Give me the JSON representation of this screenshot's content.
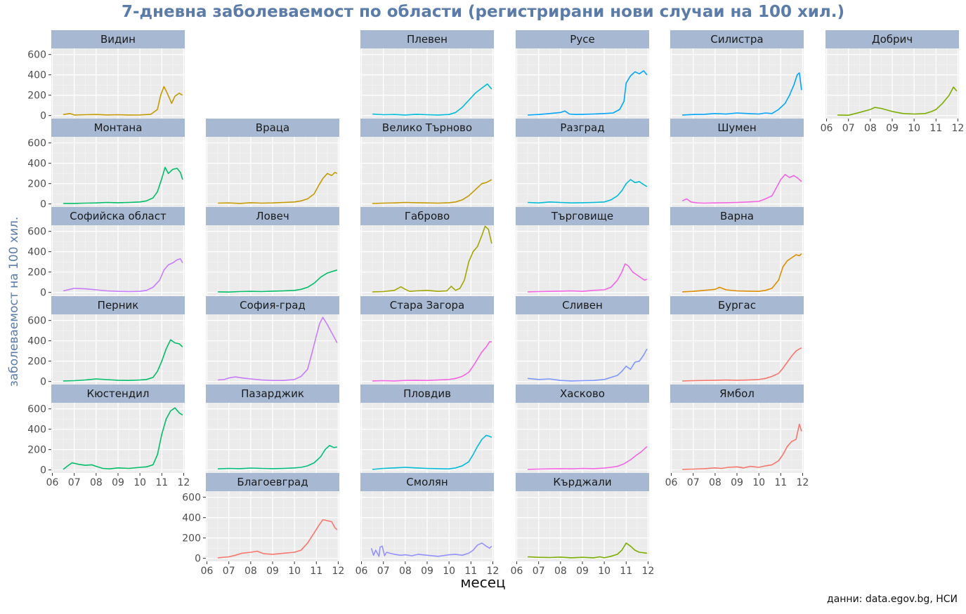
{
  "title": "7-дневна заболеваемост по области (регистрирани нови случаи на 100 хил.)",
  "caption": "данни: data.egov.bg, НСИ",
  "chart_data": {
    "type": "line",
    "xlabel": "месец",
    "ylabel": "заболеваемост на 100 хил.",
    "x_ticks": [
      "06",
      "07",
      "08",
      "09",
      "10",
      "11",
      "12"
    ],
    "y_ticks": [
      0,
      200,
      400,
      600
    ],
    "xlim": [
      5.95,
      12.05
    ],
    "ylim": [
      -30,
      660
    ],
    "grid": true,
    "legend": "none",
    "panels": [
      {
        "name": "Видин",
        "row": 0,
        "col": 0,
        "color": "#c49a00",
        "x": [
          6.5,
          6.8,
          7.0,
          7.5,
          8.0,
          8.5,
          9.0,
          9.5,
          10.0,
          10.5,
          10.8,
          10.95,
          11.1,
          11.25,
          11.45,
          11.6,
          11.8,
          11.95
        ],
        "y": [
          10,
          20,
          5,
          8,
          10,
          6,
          8,
          5,
          6,
          12,
          60,
          200,
          285,
          220,
          120,
          190,
          220,
          200
        ]
      },
      {
        "name": "Плевен",
        "row": 0,
        "col": 2,
        "color": "#00bcd8",
        "x": [
          6.5,
          7.0,
          7.5,
          8.0,
          8.5,
          9.0,
          9.5,
          10.0,
          10.3,
          10.6,
          10.9,
          11.2,
          11.5,
          11.75,
          11.95
        ],
        "y": [
          15,
          8,
          10,
          5,
          12,
          8,
          5,
          10,
          30,
          80,
          150,
          220,
          270,
          310,
          260
        ]
      },
      {
        "name": "Русе",
        "row": 0,
        "col": 3,
        "color": "#00a5ff",
        "x": [
          6.5,
          7.0,
          7.5,
          8.0,
          8.2,
          8.4,
          8.7,
          9.0,
          9.5,
          10.0,
          10.4,
          10.7,
          10.9,
          11.0,
          11.2,
          11.4,
          11.6,
          11.8,
          11.95
        ],
        "y": [
          5,
          10,
          20,
          30,
          45,
          15,
          10,
          12,
          15,
          20,
          25,
          60,
          140,
          320,
          390,
          430,
          410,
          440,
          400
        ]
      },
      {
        "name": "Силистра",
        "row": 0,
        "col": 4,
        "color": "#00a5ff",
        "x": [
          6.5,
          7.0,
          7.5,
          8.0,
          8.5,
          9.0,
          9.5,
          10.0,
          10.3,
          10.6,
          10.9,
          11.2,
          11.4,
          11.6,
          11.75,
          11.85,
          11.95
        ],
        "y": [
          5,
          10,
          12,
          20,
          15,
          25,
          20,
          15,
          25,
          20,
          60,
          120,
          200,
          300,
          400,
          420,
          250
        ]
      },
      {
        "name": "Добрич",
        "row": 0,
        "col": 5,
        "color": "#7cae00",
        "x": [
          6.5,
          7.0,
          7.5,
          8.0,
          8.2,
          8.5,
          9.0,
          9.5,
          10.0,
          10.5,
          10.8,
          11.0,
          11.3,
          11.6,
          11.8,
          11.95
        ],
        "y": [
          5,
          3,
          30,
          60,
          80,
          70,
          40,
          20,
          15,
          20,
          40,
          60,
          120,
          200,
          280,
          240
        ]
      },
      {
        "name": "Монтана",
        "row": 1,
        "col": 0,
        "color": "#00be67",
        "x": [
          6.5,
          7.0,
          7.5,
          8.0,
          8.5,
          9.0,
          9.5,
          10.0,
          10.3,
          10.6,
          10.8,
          11.0,
          11.15,
          11.3,
          11.5,
          11.7,
          11.85,
          11.95
        ],
        "y": [
          5,
          5,
          8,
          10,
          15,
          12,
          15,
          20,
          30,
          60,
          120,
          250,
          360,
          300,
          340,
          350,
          310,
          240
        ]
      },
      {
        "name": "Враца",
        "row": 1,
        "col": 1,
        "color": "#c49a00",
        "x": [
          6.5,
          7.0,
          7.5,
          8.0,
          8.5,
          9.0,
          9.5,
          10.0,
          10.3,
          10.6,
          10.9,
          11.1,
          11.3,
          11.5,
          11.7,
          11.85,
          11.95
        ],
        "y": [
          8,
          10,
          5,
          12,
          8,
          10,
          15,
          20,
          30,
          50,
          100,
          180,
          250,
          300,
          280,
          310,
          300
        ]
      },
      {
        "name": "Велико Търново",
        "row": 1,
        "col": 2,
        "color": "#c49a00",
        "x": [
          6.5,
          7.0,
          7.5,
          8.0,
          8.5,
          9.0,
          9.5,
          10.0,
          10.3,
          10.6,
          10.9,
          11.2,
          11.5,
          11.7,
          11.95
        ],
        "y": [
          5,
          8,
          10,
          15,
          12,
          10,
          8,
          12,
          20,
          40,
          80,
          140,
          200,
          210,
          240
        ]
      },
      {
        "name": "Разград",
        "row": 1,
        "col": 3,
        "color": "#00bcd8",
        "x": [
          6.5,
          7.0,
          7.5,
          8.0,
          8.5,
          9.0,
          9.5,
          10.0,
          10.3,
          10.6,
          10.8,
          11.0,
          11.2,
          11.4,
          11.6,
          11.8,
          11.95
        ],
        "y": [
          15,
          10,
          20,
          15,
          10,
          12,
          15,
          20,
          40,
          80,
          130,
          200,
          240,
          210,
          220,
          190,
          170
        ]
      },
      {
        "name": "Шумен",
        "row": 1,
        "col": 4,
        "color": "#f564e3",
        "x": [
          6.5,
          6.7,
          6.9,
          7.2,
          7.5,
          8.0,
          8.5,
          9.0,
          9.5,
          10.0,
          10.3,
          10.6,
          10.8,
          11.0,
          11.2,
          11.4,
          11.6,
          11.8,
          11.95
        ],
        "y": [
          30,
          50,
          20,
          10,
          8,
          10,
          12,
          15,
          20,
          25,
          50,
          80,
          160,
          240,
          290,
          260,
          280,
          250,
          220
        ]
      },
      {
        "name": "Софийска област",
        "row": 2,
        "col": 0,
        "color": "#c77cff",
        "x": [
          6.5,
          6.8,
          7.0,
          7.5,
          8.0,
          8.5,
          9.0,
          9.5,
          10.0,
          10.3,
          10.6,
          10.9,
          11.1,
          11.3,
          11.5,
          11.7,
          11.85,
          11.95
        ],
        "y": [
          15,
          30,
          40,
          35,
          25,
          15,
          10,
          8,
          10,
          20,
          50,
          120,
          220,
          270,
          290,
          320,
          330,
          290
        ]
      },
      {
        "name": "Ловеч",
        "row": 2,
        "col": 1,
        "color": "#00be67",
        "x": [
          6.5,
          7.0,
          7.5,
          8.0,
          8.5,
          9.0,
          9.5,
          10.0,
          10.3,
          10.6,
          10.9,
          11.2,
          11.5,
          11.8,
          11.95
        ],
        "y": [
          5,
          3,
          8,
          10,
          8,
          12,
          15,
          20,
          30,
          50,
          90,
          150,
          190,
          210,
          220
        ]
      },
      {
        "name": "Габрово",
        "row": 2,
        "col": 2,
        "color": "#a3a500",
        "x": [
          6.5,
          7.0,
          7.5,
          7.8,
          8.0,
          8.2,
          8.5,
          9.0,
          9.5,
          9.9,
          10.1,
          10.3,
          10.5,
          10.7,
          10.9,
          11.1,
          11.3,
          11.5,
          11.65,
          11.8,
          11.95
        ],
        "y": [
          5,
          8,
          20,
          55,
          30,
          10,
          15,
          20,
          10,
          15,
          60,
          20,
          40,
          120,
          300,
          400,
          450,
          560,
          650,
          620,
          480
        ]
      },
      {
        "name": "Търговище",
        "row": 2,
        "col": 3,
        "color": "#f564e3",
        "x": [
          6.5,
          7.0,
          7.5,
          8.0,
          8.5,
          9.0,
          9.5,
          10.0,
          10.3,
          10.6,
          10.8,
          10.95,
          11.1,
          11.3,
          11.5,
          11.7,
          11.85,
          11.95
        ],
        "y": [
          5,
          8,
          10,
          12,
          15,
          10,
          20,
          25,
          50,
          120,
          200,
          280,
          260,
          200,
          170,
          140,
          120,
          130
        ]
      },
      {
        "name": "Варна",
        "row": 2,
        "col": 4,
        "color": "#de8c00",
        "x": [
          6.5,
          7.0,
          7.5,
          8.0,
          8.2,
          8.5,
          9.0,
          9.5,
          10.0,
          10.3,
          10.6,
          10.9,
          11.1,
          11.3,
          11.5,
          11.7,
          11.85,
          11.95
        ],
        "y": [
          5,
          10,
          20,
          30,
          50,
          25,
          15,
          12,
          10,
          20,
          40,
          120,
          250,
          310,
          340,
          370,
          360,
          380
        ]
      },
      {
        "name": "Перник",
        "row": 3,
        "col": 0,
        "color": "#00be67",
        "x": [
          6.5,
          7.0,
          7.5,
          8.0,
          8.5,
          9.0,
          9.5,
          10.0,
          10.3,
          10.6,
          10.8,
          11.0,
          11.2,
          11.4,
          11.6,
          11.8,
          11.95
        ],
        "y": [
          5,
          8,
          15,
          25,
          18,
          12,
          10,
          15,
          20,
          40,
          100,
          200,
          320,
          410,
          380,
          370,
          340
        ]
      },
      {
        "name": "София-град",
        "row": 3,
        "col": 1,
        "color": "#c77cff",
        "x": [
          6.5,
          6.8,
          7.0,
          7.3,
          7.6,
          8.0,
          8.5,
          9.0,
          9.5,
          10.0,
          10.3,
          10.6,
          10.8,
          11.0,
          11.15,
          11.3,
          11.5,
          11.7,
          11.85,
          11.95
        ],
        "y": [
          15,
          20,
          35,
          45,
          35,
          25,
          15,
          10,
          10,
          20,
          50,
          120,
          280,
          450,
          570,
          630,
          560,
          480,
          420,
          380
        ]
      },
      {
        "name": "Стара Загора",
        "row": 3,
        "col": 2,
        "color": "#f564e3",
        "x": [
          6.5,
          7.0,
          7.5,
          8.0,
          8.5,
          9.0,
          9.5,
          10.0,
          10.3,
          10.6,
          10.9,
          11.1,
          11.3,
          11.5,
          11.7,
          11.85,
          11.95
        ],
        "y": [
          5,
          8,
          5,
          10,
          12,
          10,
          15,
          20,
          30,
          50,
          90,
          150,
          220,
          290,
          340,
          390,
          390
        ]
      },
      {
        "name": "Сливен",
        "row": 3,
        "col": 3,
        "color": "#7f96ff",
        "x": [
          6.5,
          7.0,
          7.5,
          8.0,
          8.5,
          9.0,
          9.5,
          10.0,
          10.3,
          10.6,
          10.8,
          11.0,
          11.2,
          11.4,
          11.6,
          11.8,
          11.95
        ],
        "y": [
          30,
          20,
          25,
          10,
          5,
          8,
          10,
          20,
          40,
          60,
          100,
          150,
          120,
          190,
          200,
          260,
          320
        ]
      },
      {
        "name": "Бургас",
        "row": 3,
        "col": 4,
        "color": "#f8766d",
        "x": [
          6.5,
          7.0,
          7.5,
          8.0,
          8.5,
          9.0,
          9.5,
          10.0,
          10.3,
          10.6,
          10.9,
          11.1,
          11.3,
          11.5,
          11.7,
          11.85,
          11.95
        ],
        "y": [
          5,
          8,
          10,
          12,
          15,
          12,
          15,
          20,
          30,
          50,
          80,
          130,
          190,
          250,
          300,
          320,
          330
        ]
      },
      {
        "name": "Кюстендил",
        "row": 4,
        "col": 0,
        "color": "#00be67",
        "x": [
          6.5,
          6.7,
          6.9,
          7.2,
          7.5,
          7.8,
          8.0,
          8.3,
          8.6,
          9.0,
          9.5,
          10.0,
          10.3,
          10.6,
          10.8,
          11.0,
          11.2,
          11.4,
          11.6,
          11.8,
          11.95
        ],
        "y": [
          5,
          40,
          70,
          55,
          45,
          50,
          35,
          15,
          10,
          20,
          15,
          25,
          30,
          50,
          150,
          350,
          500,
          580,
          610,
          560,
          540
        ]
      },
      {
        "name": "Пазарджик",
        "row": 4,
        "col": 1,
        "color": "#00bf7d",
        "x": [
          6.5,
          7.0,
          7.5,
          8.0,
          8.5,
          9.0,
          9.5,
          10.0,
          10.3,
          10.6,
          10.9,
          11.2,
          11.4,
          11.6,
          11.8,
          11.95
        ],
        "y": [
          10,
          15,
          12,
          18,
          15,
          12,
          15,
          20,
          25,
          40,
          70,
          130,
          200,
          240,
          220,
          225
        ]
      },
      {
        "name": "Пловдив",
        "row": 4,
        "col": 2,
        "color": "#00bcd8",
        "x": [
          6.5,
          7.0,
          7.5,
          8.0,
          8.5,
          9.0,
          9.5,
          10.0,
          10.3,
          10.6,
          10.9,
          11.1,
          11.3,
          11.5,
          11.7,
          11.85,
          11.95
        ],
        "y": [
          5,
          15,
          20,
          25,
          20,
          15,
          12,
          10,
          20,
          40,
          80,
          150,
          230,
          300,
          340,
          330,
          320
        ]
      },
      {
        "name": "Хасково",
        "row": 4,
        "col": 3,
        "color": "#f564e3",
        "x": [
          6.5,
          7.0,
          7.5,
          8.0,
          8.5,
          9.0,
          9.5,
          10.0,
          10.3,
          10.6,
          10.9,
          11.2,
          11.5,
          11.7,
          11.85,
          11.95
        ],
        "y": [
          5,
          8,
          10,
          12,
          10,
          15,
          12,
          18,
          25,
          35,
          60,
          100,
          150,
          180,
          210,
          230
        ]
      },
      {
        "name": "Ямбол",
        "row": 4,
        "col": 4,
        "color": "#f8766d",
        "x": [
          6.5,
          7.0,
          7.5,
          8.0,
          8.3,
          8.6,
          9.0,
          9.3,
          9.6,
          10.0,
          10.3,
          10.6,
          10.9,
          11.1,
          11.3,
          11.5,
          11.7,
          11.85,
          11.95
        ],
        "y": [
          5,
          8,
          12,
          20,
          15,
          25,
          30,
          20,
          35,
          25,
          40,
          50,
          90,
          150,
          230,
          280,
          300,
          450,
          380
        ]
      },
      {
        "name": "Благоевград",
        "row": 5,
        "col": 1,
        "color": "#f8766d",
        "x": [
          6.5,
          7.0,
          7.3,
          7.6,
          8.0,
          8.3,
          8.6,
          9.0,
          9.5,
          10.0,
          10.3,
          10.6,
          10.9,
          11.1,
          11.3,
          11.5,
          11.7,
          11.85,
          11.95
        ],
        "y": [
          5,
          15,
          30,
          50,
          60,
          70,
          45,
          40,
          50,
          60,
          80,
          150,
          250,
          320,
          380,
          370,
          360,
          300,
          280
        ]
      },
      {
        "name": "Смолян",
        "row": 5,
        "col": 2,
        "color": "#9590ff",
        "x": [
          6.45,
          6.55,
          6.65,
          6.8,
          6.85,
          6.95,
          7.05,
          7.15,
          7.3,
          7.5,
          7.8,
          8.0,
          8.3,
          8.6,
          9.0,
          9.5,
          10.0,
          10.3,
          10.6,
          10.9,
          11.1,
          11.3,
          11.5,
          11.7,
          11.85,
          11.95
        ],
        "y": [
          100,
          30,
          80,
          20,
          110,
          120,
          25,
          60,
          50,
          40,
          30,
          35,
          25,
          40,
          30,
          20,
          35,
          40,
          30,
          50,
          80,
          130,
          150,
          120,
          100,
          120
        ]
      },
      {
        "name": "Кърджали",
        "row": 5,
        "col": 3,
        "color": "#7cae00",
        "x": [
          6.5,
          7.0,
          7.5,
          8.0,
          8.5,
          9.0,
          9.5,
          9.8,
          10.0,
          10.3,
          10.6,
          10.8,
          11.0,
          11.2,
          11.4,
          11.6,
          11.8,
          11.95
        ],
        "y": [
          15,
          10,
          8,
          12,
          5,
          10,
          5,
          15,
          5,
          20,
          40,
          80,
          150,
          120,
          80,
          60,
          55,
          50
        ]
      }
    ]
  }
}
